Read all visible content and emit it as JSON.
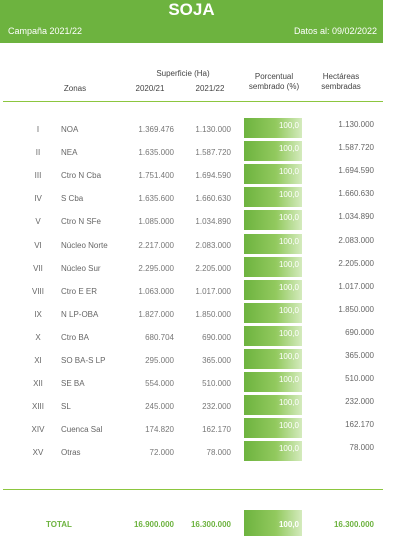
{
  "header": {
    "title": "SOJA",
    "campaign": "Campaña 2021/22",
    "date": "Datos al: 09/02/2022"
  },
  "columns": {
    "zones": "Zonas",
    "surface": "Superficie (Ha)",
    "year1": "2020/21",
    "year2": "2021/22",
    "percent": "Porcentual sembrado (%)",
    "hectares": "Hectáreas sembradas"
  },
  "rows": [
    {
      "roman": "I",
      "zone": "NOA",
      "v1": "1.369.476",
      "v2": "1.130.000",
      "pct": "100,0",
      "ha": "1.130.000"
    },
    {
      "roman": "II",
      "zone": "NEA",
      "v1": "1.635.000",
      "v2": "1.587.720",
      "pct": "100,0",
      "ha": "1.587.720"
    },
    {
      "roman": "III",
      "zone": "Ctro N Cba",
      "v1": "1.751.400",
      "v2": "1.694.590",
      "pct": "100,0",
      "ha": "1.694.590"
    },
    {
      "roman": "IV",
      "zone": "S Cba",
      "v1": "1.635.600",
      "v2": "1.660.630",
      "pct": "100,0",
      "ha": "1.660.630"
    },
    {
      "roman": "V",
      "zone": "Ctro N SFe",
      "v1": "1.085.000",
      "v2": "1.034.890",
      "pct": "100,0",
      "ha": "1.034.890"
    },
    {
      "roman": "VI",
      "zone": "Núcleo Norte",
      "v1": "2.217.000",
      "v2": "2.083.000",
      "pct": "100,0",
      "ha": "2.083.000"
    },
    {
      "roman": "VII",
      "zone": "Núcleo Sur",
      "v1": "2.295.000",
      "v2": "2.205.000",
      "pct": "100,0",
      "ha": "2.205.000"
    },
    {
      "roman": "VIII",
      "zone": "Ctro E ER",
      "v1": "1.063.000",
      "v2": "1.017.000",
      "pct": "100,0",
      "ha": "1.017.000"
    },
    {
      "roman": "IX",
      "zone": "N LP-OBA",
      "v1": "1.827.000",
      "v2": "1.850.000",
      "pct": "100,0",
      "ha": "1.850.000"
    },
    {
      "roman": "X",
      "zone": "Ctro BA",
      "v1": "680.704",
      "v2": "690.000",
      "pct": "100,0",
      "ha": "690.000"
    },
    {
      "roman": "XI",
      "zone": "SO BA-S LP",
      "v1": "295.000",
      "v2": "365.000",
      "pct": "100,0",
      "ha": "365.000"
    },
    {
      "roman": "XII",
      "zone": "SE BA",
      "v1": "554.000",
      "v2": "510.000",
      "pct": "100,0",
      "ha": "510.000"
    },
    {
      "roman": "XIII",
      "zone": "SL",
      "v1": "245.000",
      "v2": "232.000",
      "pct": "100,0",
      "ha": "232.000"
    },
    {
      "roman": "XIV",
      "zone": "Cuenca Sal",
      "v1": "174.820",
      "v2": "162.170",
      "pct": "100,0",
      "ha": "162.170"
    },
    {
      "roman": "XV",
      "zone": "Otras",
      "v1": "72.000",
      "v2": "78.000",
      "pct": "100,0",
      "ha": "78.000"
    }
  ],
  "total": {
    "label": "TOTAL",
    "v1": "16.900.000",
    "v2": "16.300.000",
    "pct": "100,0",
    "ha": "16.300.000"
  }
}
